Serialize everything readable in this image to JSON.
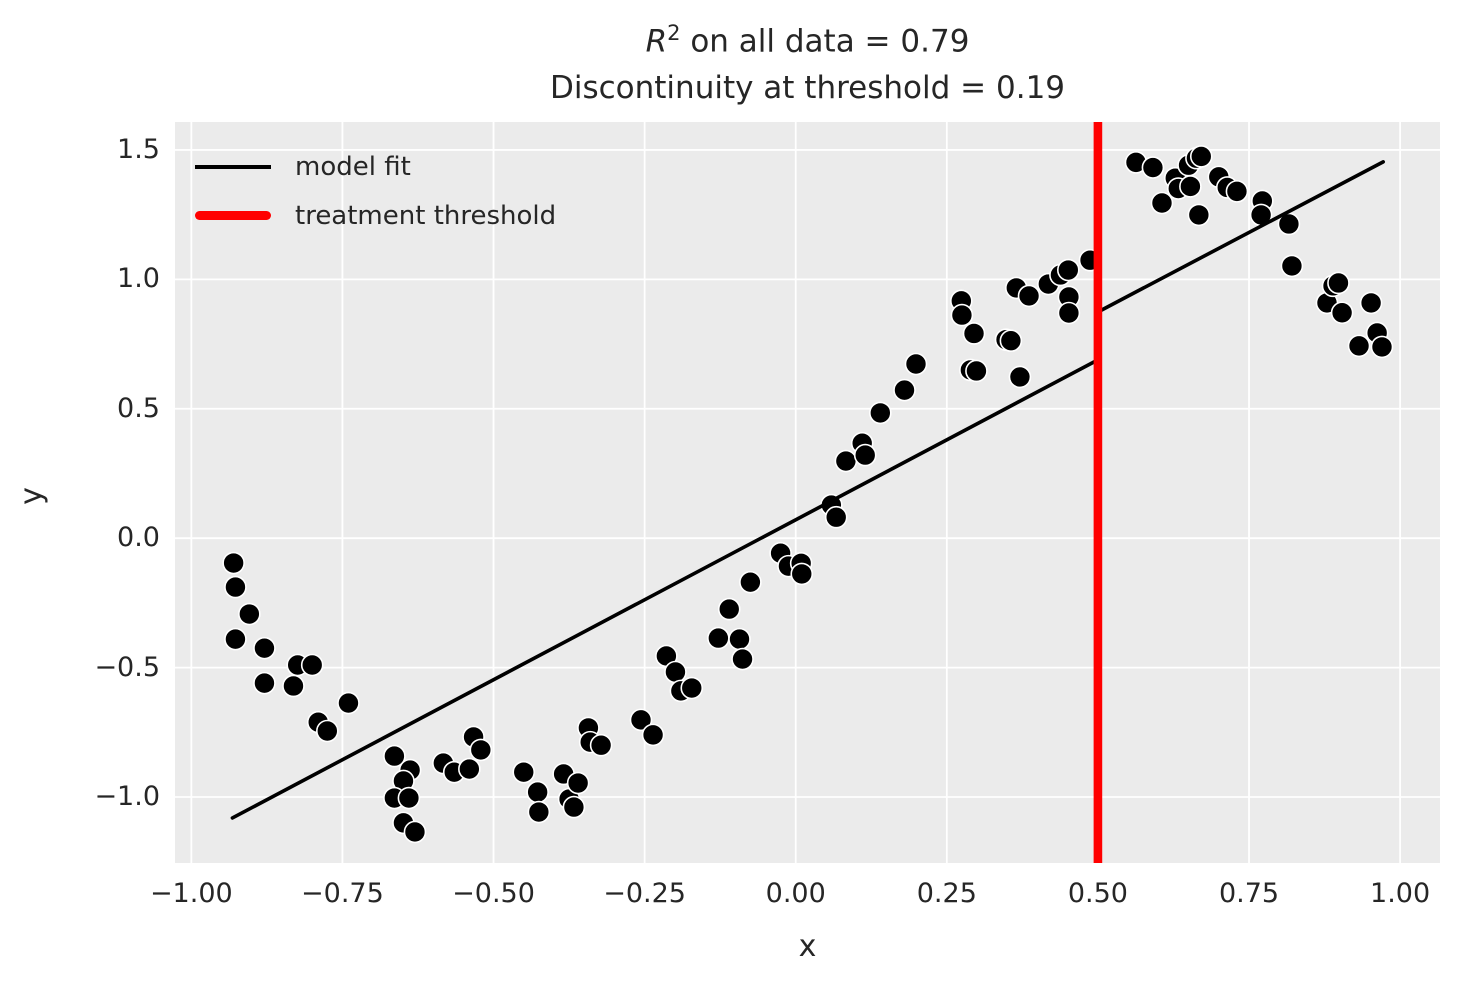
{
  "title": {
    "r_symbol": "R",
    "r_exponent": "2",
    "line1_rest": " on all data = 0.79",
    "line2": "Discontinuity at threshold = 0.19"
  },
  "legend": {
    "position": "upper left",
    "items": [
      {
        "label": "model fit",
        "color": "#000000",
        "thick": false
      },
      {
        "label": "treatment threshold",
        "color": "#ff0000",
        "thick": true
      }
    ]
  },
  "colors": {
    "figure_background": "#ffffff",
    "axes_background": "#ebebeb",
    "grid": "#ffffff",
    "text": "#262626",
    "scatter": "#000000",
    "scatter_edge": "#ffffff",
    "fit_line": "#000000",
    "threshold_line": "#ff0000"
  },
  "chart_data": {
    "type": "scatter",
    "title": "R^2 on all data = 0.79\nDiscontinuity at threshold = 0.19",
    "xlabel": "x",
    "ylabel": "y",
    "xlim": [
      -1.027,
      1.066
    ],
    "ylim": [
      -1.255,
      1.608
    ],
    "grid": true,
    "legend_position": "upper left",
    "x_ticks": [
      -1.0,
      -0.75,
      -0.5,
      -0.25,
      0.0,
      0.25,
      0.5,
      0.75,
      1.0
    ],
    "x_tick_labels": [
      "−1.00",
      "−0.75",
      "−0.50",
      "−0.25",
      "0.00",
      "0.25",
      "0.50",
      "0.75",
      "1.00"
    ],
    "y_ticks": [
      -1.0,
      -0.5,
      0.0,
      0.5,
      1.0,
      1.5
    ],
    "y_tick_labels": [
      "−1.0",
      "−0.5",
      "0.0",
      "0.5",
      "1.0",
      "1.5"
    ],
    "r_squared": 0.79,
    "discontinuity": 0.19,
    "threshold": {
      "x": 0.5
    },
    "model_fit": {
      "segments": [
        {
          "x": [
            -0.932,
            0.5
          ],
          "y": [
            -1.081,
            0.689
          ]
        },
        {
          "x": [
            0.5,
            0.5
          ],
          "y": [
            0.689,
            0.874
          ]
        },
        {
          "x": [
            0.5,
            0.972
          ],
          "y": [
            0.874,
            1.454
          ]
        }
      ]
    },
    "points": [
      [
        -0.93,
        -0.096
      ],
      [
        -0.927,
        -0.189
      ],
      [
        -0.904,
        -0.293
      ],
      [
        -0.927,
        -0.39
      ],
      [
        -0.879,
        -0.425
      ],
      [
        -0.824,
        -0.49
      ],
      [
        -0.8,
        -0.49
      ],
      [
        -0.879,
        -0.56
      ],
      [
        -0.831,
        -0.571
      ],
      [
        -0.74,
        -0.637
      ],
      [
        -0.79,
        -0.711
      ],
      [
        -0.775,
        -0.745
      ],
      [
        -0.664,
        -0.842
      ],
      [
        -0.638,
        -0.896
      ],
      [
        -0.649,
        -0.938
      ],
      [
        -0.664,
        -1.004
      ],
      [
        -0.64,
        -1.004
      ],
      [
        -0.649,
        -1.1
      ],
      [
        -0.63,
        -1.135
      ],
      [
        -0.583,
        -0.869
      ],
      [
        -0.565,
        -0.904
      ],
      [
        -0.54,
        -0.892
      ],
      [
        -0.533,
        -0.768
      ],
      [
        -0.521,
        -0.818
      ],
      [
        -0.45,
        -0.904
      ],
      [
        -0.427,
        -0.981
      ],
      [
        -0.425,
        -1.058
      ],
      [
        -0.384,
        -0.911
      ],
      [
        -0.375,
        -1.008
      ],
      [
        -0.36,
        -0.946
      ],
      [
        -0.367,
        -1.039
      ],
      [
        -0.343,
        -0.733
      ],
      [
        -0.34,
        -0.788
      ],
      [
        -0.322,
        -0.8
      ],
      [
        -0.256,
        -0.702
      ],
      [
        -0.236,
        -0.76
      ],
      [
        -0.214,
        -0.455
      ],
      [
        -0.199,
        -0.517
      ],
      [
        -0.19,
        -0.59
      ],
      [
        -0.172,
        -0.579
      ],
      [
        -0.128,
        -0.386
      ],
      [
        -0.093,
        -0.39
      ],
      [
        -0.088,
        -0.467
      ],
      [
        -0.11,
        -0.274
      ],
      [
        -0.075,
        -0.17
      ],
      [
        -0.025,
        -0.058
      ],
      [
        -0.012,
        -0.108
      ],
      [
        0.009,
        -0.097
      ],
      [
        0.01,
        -0.138
      ],
      [
        0.059,
        0.128
      ],
      [
        0.067,
        0.081
      ],
      [
        0.083,
        0.298
      ],
      [
        0.11,
        0.367
      ],
      [
        0.115,
        0.321
      ],
      [
        0.14,
        0.484
      ],
      [
        0.18,
        0.572
      ],
      [
        0.199,
        0.673
      ],
      [
        0.274,
        0.917
      ],
      [
        0.275,
        0.862
      ],
      [
        0.295,
        0.791
      ],
      [
        0.289,
        0.65
      ],
      [
        0.299,
        0.646
      ],
      [
        0.348,
        0.767
      ],
      [
        0.356,
        0.763
      ],
      [
        0.365,
        0.967
      ],
      [
        0.386,
        0.936
      ],
      [
        0.371,
        0.623
      ],
      [
        0.418,
        0.982
      ],
      [
        0.438,
        1.017
      ],
      [
        0.451,
        1.036
      ],
      [
        0.452,
        0.932
      ],
      [
        0.452,
        0.87
      ],
      [
        0.487,
        1.074
      ],
      [
        0.563,
        1.452
      ],
      [
        0.591,
        1.432
      ],
      [
        0.606,
        1.295
      ],
      [
        0.628,
        1.391
      ],
      [
        0.633,
        1.351
      ],
      [
        0.653,
        1.359
      ],
      [
        0.65,
        1.441
      ],
      [
        0.663,
        1.468
      ],
      [
        0.671,
        1.475
      ],
      [
        0.667,
        1.249
      ],
      [
        0.7,
        1.396
      ],
      [
        0.714,
        1.355
      ],
      [
        0.73,
        1.34
      ],
      [
        0.772,
        1.303
      ],
      [
        0.77,
        1.249
      ],
      [
        0.816,
        1.214
      ],
      [
        0.821,
        1.052
      ],
      [
        0.879,
        0.909
      ],
      [
        0.889,
        0.975
      ],
      [
        0.898,
        0.986
      ],
      [
        0.904,
        0.871
      ],
      [
        0.932,
        0.743
      ],
      [
        0.952,
        0.909
      ],
      [
        0.962,
        0.793
      ],
      [
        0.97,
        0.739
      ]
    ]
  }
}
